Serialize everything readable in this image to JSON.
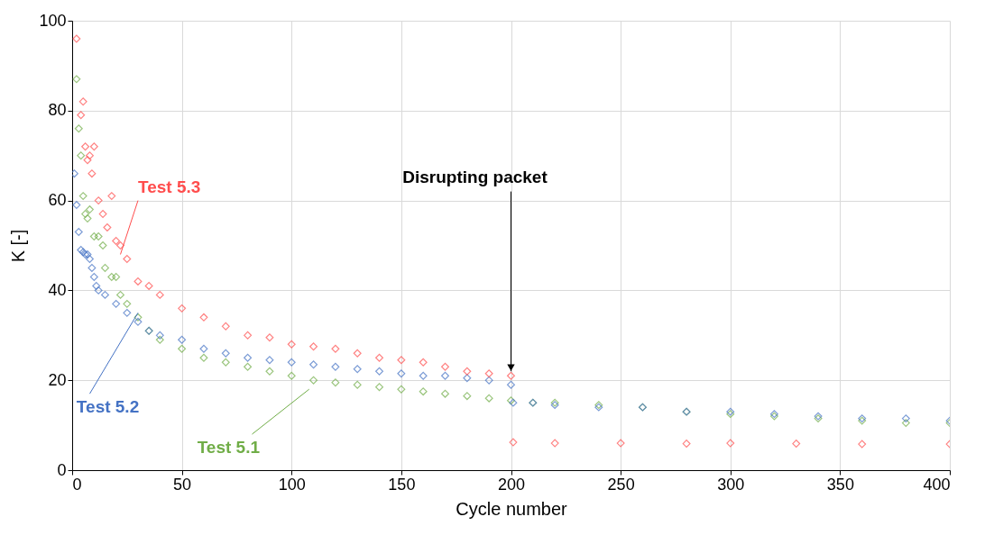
{
  "chart_data": {
    "type": "scatter",
    "xlabel": "Cycle number",
    "ylabel": "K [-]",
    "xlim": [
      0,
      400
    ],
    "xticks": [
      0,
      50,
      100,
      150,
      200,
      250,
      300,
      350,
      400
    ],
    "ylim": [
      0,
      100
    ],
    "yticks": [
      0,
      20,
      40,
      60,
      80,
      100
    ],
    "grid": true,
    "marker": "diamond",
    "annotations": [
      {
        "text": "Disrupting packet",
        "x": 200,
        "y": 22
      }
    ],
    "series": [
      {
        "name": "Test 5.1",
        "color": "#70ad47",
        "x": [
          2,
          3,
          4,
          5,
          6,
          7,
          8,
          10,
          12,
          14,
          15,
          18,
          20,
          22,
          25,
          30,
          35,
          40,
          50,
          60,
          70,
          80,
          90,
          100,
          110,
          120,
          130,
          140,
          150,
          160,
          170,
          180,
          190,
          200,
          210,
          220,
          240,
          260,
          280,
          300,
          320,
          340,
          360,
          380,
          400
        ],
        "values": [
          87,
          76,
          70,
          61,
          57,
          56,
          58,
          52,
          52,
          50,
          45,
          43,
          43,
          39,
          37,
          34,
          31,
          29,
          27,
          25,
          24,
          23,
          22,
          21,
          20,
          19.5,
          19,
          18.5,
          18,
          17.5,
          17,
          16.5,
          16,
          15.5,
          15,
          15,
          14.5,
          14,
          13,
          12.5,
          12,
          11.5,
          11,
          10.5,
          10.5
        ]
      },
      {
        "name": "Test 5.2",
        "color": "#4472c4",
        "x": [
          1,
          2,
          3,
          4,
          5,
          6,
          7,
          8,
          9,
          10,
          11,
          12,
          15,
          20,
          25,
          30,
          35,
          40,
          50,
          60,
          70,
          80,
          90,
          100,
          110,
          120,
          130,
          140,
          150,
          160,
          170,
          180,
          190,
          200,
          201,
          210,
          220,
          240,
          260,
          280,
          300,
          320,
          340,
          360,
          380,
          400
        ],
        "values": [
          66,
          59,
          53,
          49,
          48.5,
          48,
          48,
          47,
          45,
          43,
          41,
          40,
          39,
          37,
          35,
          33,
          31,
          30,
          29,
          27,
          26,
          25,
          24.5,
          24,
          23.5,
          23,
          22.5,
          22,
          21.5,
          21,
          21,
          20.5,
          20,
          19,
          15,
          15,
          14.5,
          14,
          14,
          13,
          13,
          12.5,
          12,
          11.5,
          11.5,
          11
        ]
      },
      {
        "name": "Test 5.3",
        "color": "#ff4d4d",
        "x": [
          2,
          4,
          5,
          6,
          7,
          8,
          9,
          10,
          12,
          14,
          16,
          18,
          20,
          22,
          25,
          30,
          35,
          40,
          50,
          60,
          70,
          80,
          90,
          100,
          110,
          120,
          130,
          140,
          150,
          160,
          170,
          180,
          190,
          200,
          201,
          220,
          250,
          280,
          300,
          330,
          360,
          400
        ],
        "values": [
          96,
          79,
          82,
          72,
          69,
          70,
          66,
          72,
          60,
          57,
          54,
          61,
          51,
          50,
          47,
          42,
          41,
          39,
          36,
          34,
          32,
          30,
          29.5,
          28,
          27.5,
          27,
          26,
          25,
          24.5,
          24,
          23,
          22,
          21.5,
          21,
          6.2,
          6,
          6,
          5.9,
          6,
          5.9,
          5.8,
          5.8
        ]
      }
    ]
  }
}
